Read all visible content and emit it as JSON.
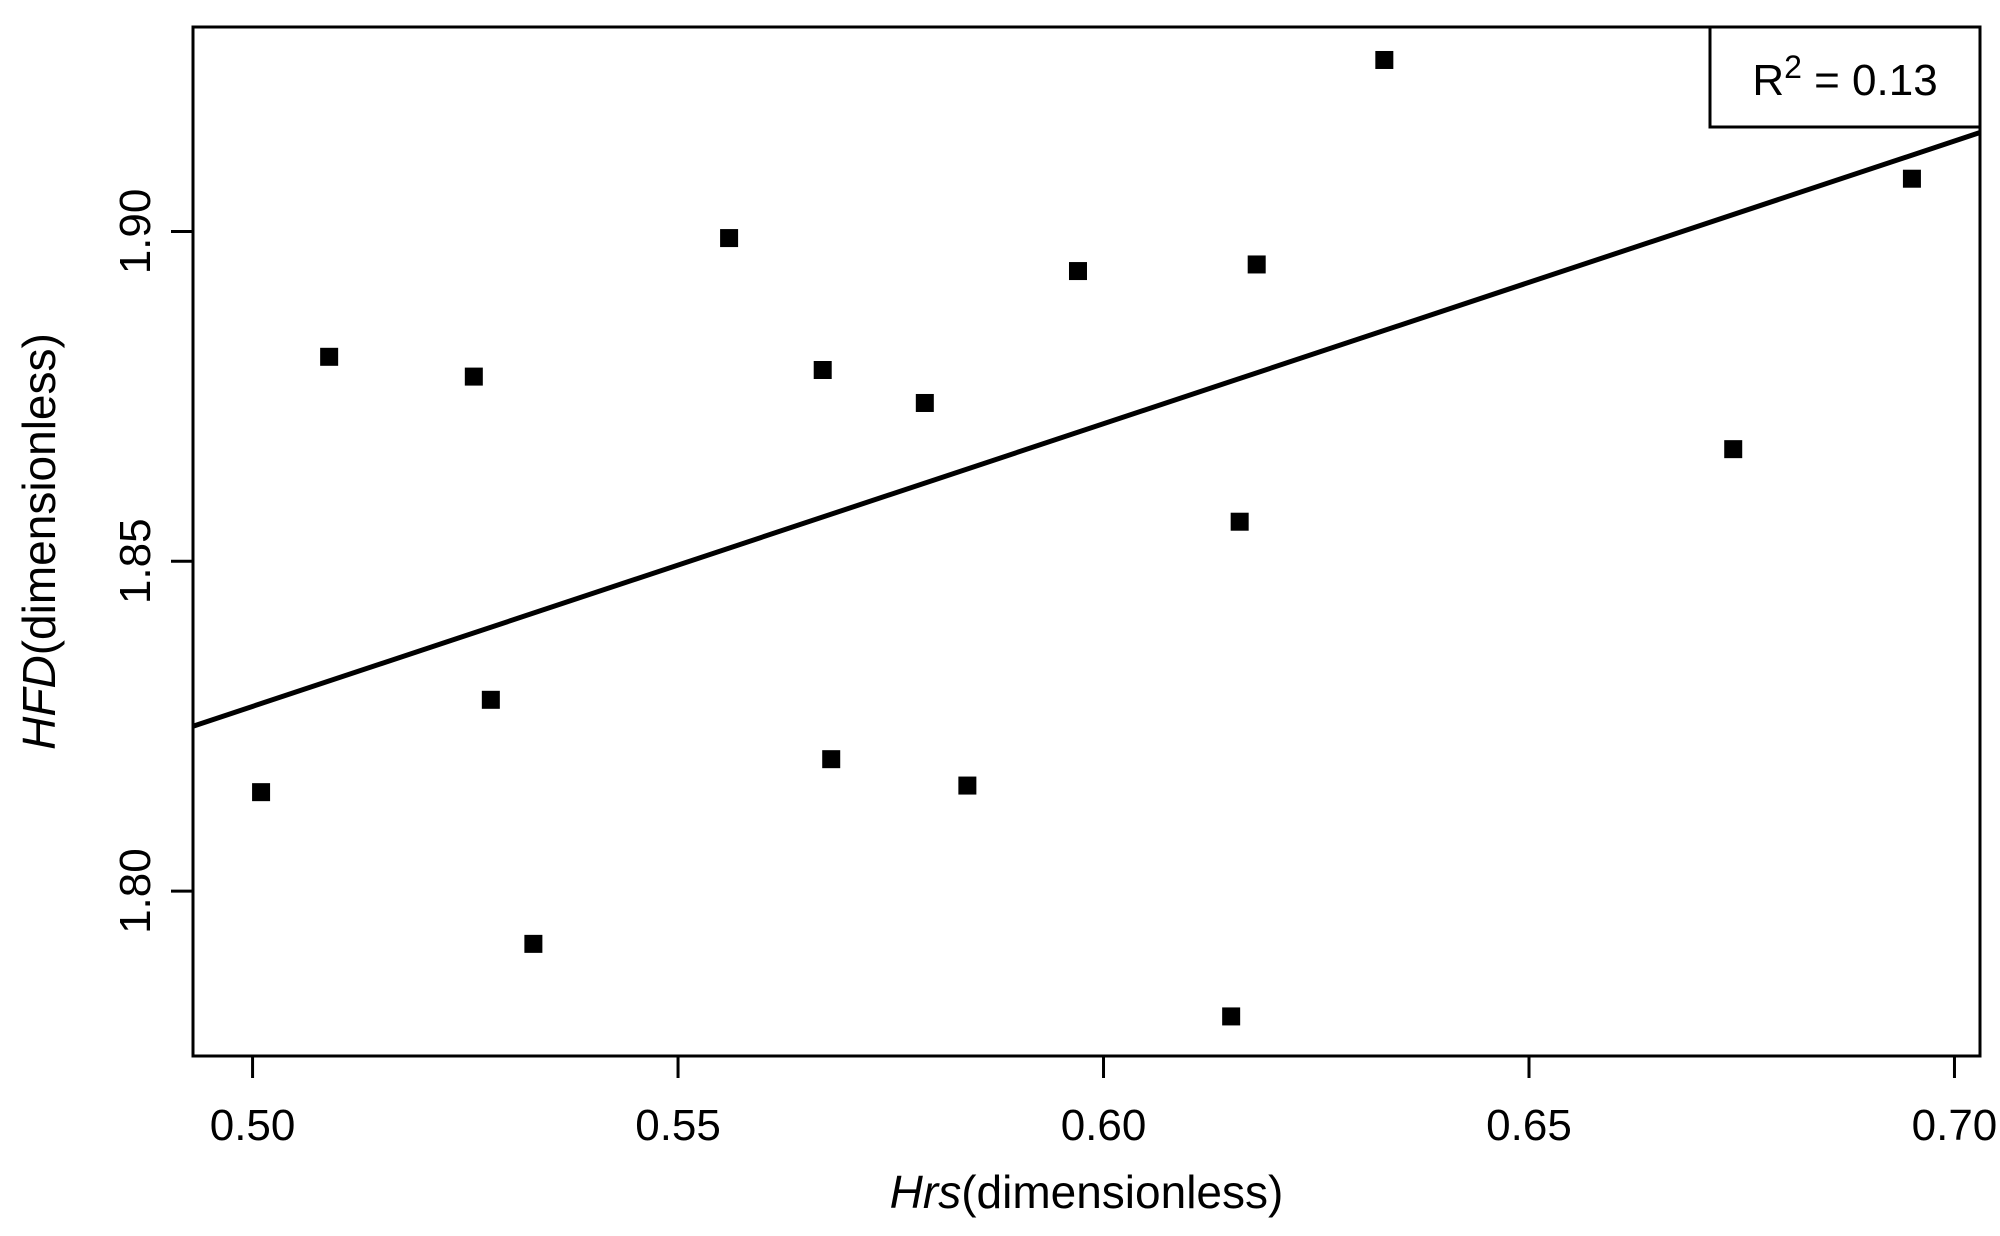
{
  "figure": {
    "background": "#ffffff",
    "foreground": "#000000"
  },
  "annotation": {
    "r_squared_base": "R",
    "r_squared_sup": "2",
    "r_squared_rest": " = 0.13"
  },
  "chart_data": {
    "type": "scatter",
    "title": "",
    "xlabel_italic": "Hrs",
    "xlabel_rest": "(dimensionless)",
    "ylabel_italic": "HFD",
    "ylabel_rest": "(dimensionless)",
    "x_tick_values": [
      0.5,
      0.55,
      0.6,
      0.65,
      0.7
    ],
    "x_tick_labels": [
      "0.50",
      "0.55",
      "0.60",
      "0.65",
      "0.70"
    ],
    "y_tick_values": [
      1.8,
      1.85,
      1.9
    ],
    "y_tick_labels": [
      "1.80",
      "1.85",
      "1.90"
    ],
    "xlim": [
      0.493,
      0.703
    ],
    "ylim": [
      1.775,
      1.931
    ],
    "grid": false,
    "legend": null,
    "marker": "filled-square",
    "marker_color": "#000000",
    "line_color": "#000000",
    "r_squared": 0.13,
    "points": [
      {
        "x": 0.501,
        "y": 1.815
      },
      {
        "x": 0.509,
        "y": 1.881
      },
      {
        "x": 0.526,
        "y": 1.878
      },
      {
        "x": 0.528,
        "y": 1.829
      },
      {
        "x": 0.533,
        "y": 1.792
      },
      {
        "x": 0.556,
        "y": 1.899
      },
      {
        "x": 0.567,
        "y": 1.879
      },
      {
        "x": 0.568,
        "y": 1.82
      },
      {
        "x": 0.579,
        "y": 1.874
      },
      {
        "x": 0.584,
        "y": 1.816
      },
      {
        "x": 0.597,
        "y": 1.894
      },
      {
        "x": 0.615,
        "y": 1.781
      },
      {
        "x": 0.616,
        "y": 1.856
      },
      {
        "x": 0.618,
        "y": 1.895
      },
      {
        "x": 0.633,
        "y": 1.926
      },
      {
        "x": 0.674,
        "y": 1.867
      },
      {
        "x": 0.695,
        "y": 1.908
      }
    ],
    "regression_line": {
      "slope": 0.429,
      "intercept": 1.614,
      "x": [
        0.493,
        0.703
      ],
      "y": [
        1.825,
        1.915
      ]
    }
  }
}
